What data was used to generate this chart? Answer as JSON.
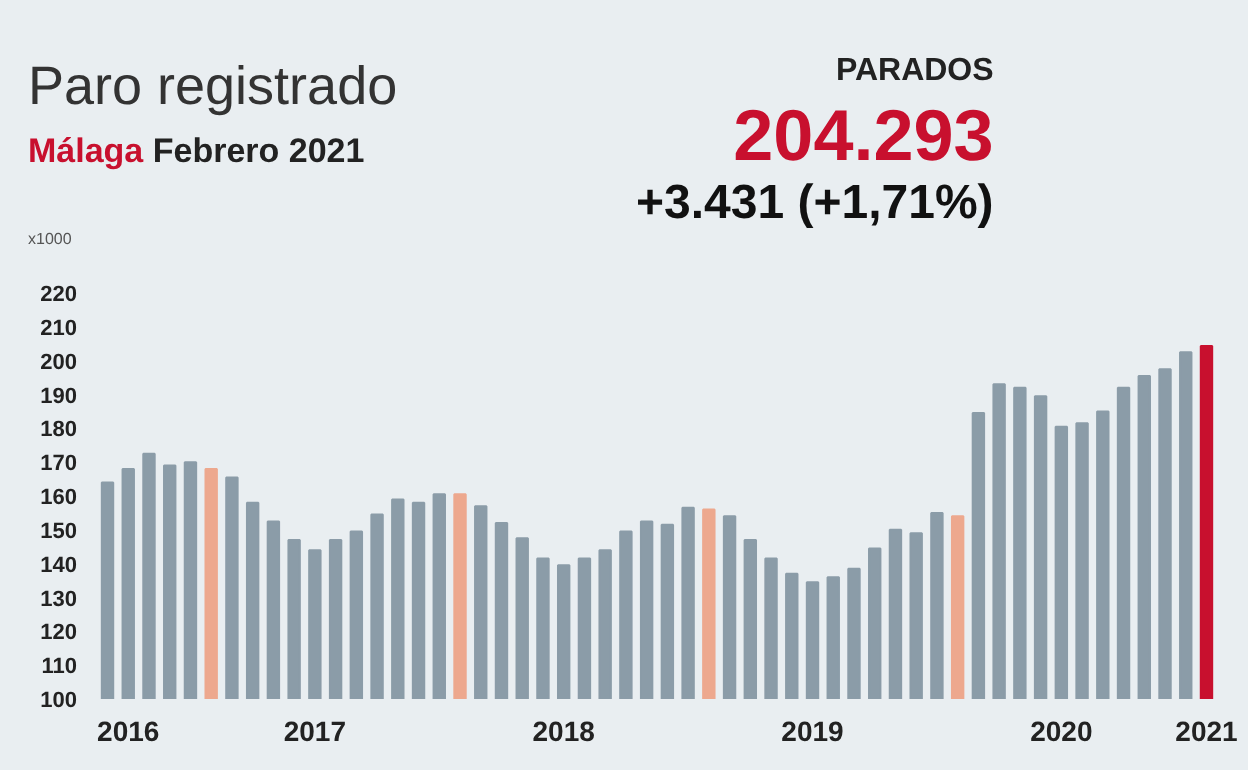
{
  "chart_data": {
    "type": "bar",
    "title": "Paro registrado",
    "subtitle": "Málaga Febrero 2021",
    "ylabel": "x1000",
    "annotations": [
      "PARADOS",
      "204.293",
      "+3.431 (+1,71%)"
    ],
    "categories": [
      null,
      "2016",
      null,
      null,
      null,
      null,
      null,
      null,
      null,
      null,
      "2017",
      null,
      null,
      null,
      null,
      null,
      null,
      null,
      null,
      null,
      null,
      null,
      "2018",
      null,
      null,
      null,
      null,
      null,
      null,
      null,
      null,
      null,
      null,
      null,
      "2019",
      null,
      null,
      null,
      null,
      null,
      null,
      null,
      null,
      null,
      null,
      null,
      "2020",
      null,
      null,
      null,
      null,
      null,
      null,
      "2021"
    ],
    "values": [
      164,
      168,
      172.5,
      169,
      170,
      168,
      165.5,
      158,
      152.5,
      147,
      144,
      147,
      149.5,
      154.5,
      159,
      158,
      160.5,
      160.5,
      157,
      152,
      147.5,
      141.5,
      139.5,
      141.5,
      144,
      149.5,
      152.5,
      151.5,
      156.5,
      156,
      154,
      147,
      141.5,
      137,
      134.5,
      136,
      138.5,
      144.5,
      150,
      149,
      155,
      154,
      184.5,
      193,
      192,
      189.5,
      180.5,
      181.5,
      185,
      192,
      195.5,
      197.5,
      202.5,
      204.3
    ],
    "colors": [
      "#8b9ca8",
      "#8b9ca8",
      "#8b9ca8",
      "#8b9ca8",
      "#8b9ca8",
      "#eda88e",
      "#8b9ca8",
      "#8b9ca8",
      "#8b9ca8",
      "#8b9ca8",
      "#8b9ca8",
      "#8b9ca8",
      "#8b9ca8",
      "#8b9ca8",
      "#8b9ca8",
      "#8b9ca8",
      "#8b9ca8",
      "#eda88e",
      "#8b9ca8",
      "#8b9ca8",
      "#8b9ca8",
      "#8b9ca8",
      "#8b9ca8",
      "#8b9ca8",
      "#8b9ca8",
      "#8b9ca8",
      "#8b9ca8",
      "#8b9ca8",
      "#8b9ca8",
      "#eda88e",
      "#8b9ca8",
      "#8b9ca8",
      "#8b9ca8",
      "#8b9ca8",
      "#8b9ca8",
      "#8b9ca8",
      "#8b9ca8",
      "#8b9ca8",
      "#8b9ca8",
      "#8b9ca8",
      "#8b9ca8",
      "#eda88e",
      "#8b9ca8",
      "#8b9ca8",
      "#8b9ca8",
      "#8b9ca8",
      "#8b9ca8",
      "#8b9ca8",
      "#8b9ca8",
      "#8b9ca8",
      "#8b9ca8",
      "#8b9ca8",
      "#8b9ca8",
      "#c8102e"
    ],
    "ylim": [
      100,
      220
    ],
    "yticks": [
      100,
      110,
      120,
      130,
      140,
      150,
      160,
      170,
      180,
      190,
      200,
      210,
      220
    ],
    "grid": false
  }
}
